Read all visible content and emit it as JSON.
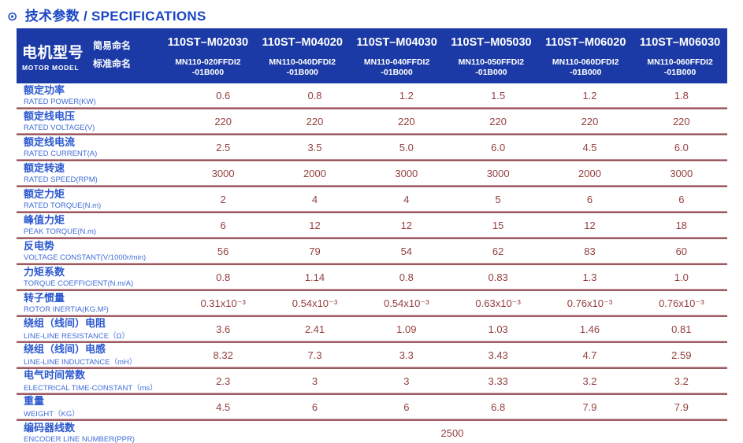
{
  "page_title": {
    "icon_glyph": "⊙",
    "text": "技术参数 / SPECIFICATIONS"
  },
  "colors": {
    "title_blue": "#1a46c4",
    "header_bg": "#1b3aa6",
    "label_blue": "#2b58cf",
    "label_blue_light": "#3f6bd8",
    "value_red": "#94403f",
    "divider_red": "#9d5c62"
  },
  "table": {
    "model_cell": {
      "title": "电机型号",
      "subtitle": "MOTOR MODEL"
    },
    "name_labels": {
      "simple": "简易命名",
      "standard": "标准命名"
    },
    "columns": [
      {
        "simple_name": "110ST–M02030",
        "standard_name": "MN110-020FFDI2\n-01B000"
      },
      {
        "simple_name": "110ST–M04020",
        "standard_name": "MN110-040DFDI2\n-01B000"
      },
      {
        "simple_name": "110ST–M04030",
        "standard_name": "MN110-040FFDI2\n-01B000"
      },
      {
        "simple_name": "110ST–M05030",
        "standard_name": "MN110-050FFDI2\n-01B000"
      },
      {
        "simple_name": "110ST–M06020",
        "standard_name": "MN110-060DFDI2\n-01B000"
      },
      {
        "simple_name": "110ST–M06030",
        "standard_name": "MN110-060FFDI2\n-01B000"
      }
    ],
    "rows": [
      {
        "label_cn": "额定功率",
        "label_en": "RATED POWER(KW)",
        "values": [
          "0.6",
          "0.8",
          "1.2",
          "1.5",
          "1.2",
          "1.8"
        ]
      },
      {
        "label_cn": "额定线电压",
        "label_en": "RATED VOLTAGE(V)",
        "values": [
          "220",
          "220",
          "220",
          "220",
          "220",
          "220"
        ]
      },
      {
        "label_cn": "额定线电流",
        "label_en": "RATED CURRENT(A)",
        "values": [
          "2.5",
          "3.5",
          "5.0",
          "6.0",
          "4.5",
          "6.0"
        ]
      },
      {
        "label_cn": "额定转速",
        "label_en": "RATED SPEED(RPM)",
        "values": [
          "3000",
          "2000",
          "3000",
          "3000",
          "2000",
          "3000"
        ]
      },
      {
        "label_cn": "额定力矩",
        "label_en": "RATED TORQUE(N.m)",
        "values": [
          "2",
          "4",
          "4",
          "5",
          "6",
          "6"
        ]
      },
      {
        "label_cn": "峰值力矩",
        "label_en": "PEAK TORQUE(N.m)",
        "values": [
          "6",
          "12",
          "12",
          "15",
          "12",
          "18"
        ]
      },
      {
        "label_cn": "反电势",
        "label_en": "VOLTAGE CONSTANT(V/1000r/min)",
        "values": [
          "56",
          "79",
          "54",
          "62",
          "83",
          "60"
        ]
      },
      {
        "label_cn": "力矩系数",
        "label_en": "TORQUE COEFFICIENT(N.m/A)",
        "values": [
          "0.8",
          "1.14",
          "0.8",
          "0.83",
          "1.3",
          "1.0"
        ]
      },
      {
        "label_cn": "转子惯量",
        "label_en": "ROTOR INERTIA(KG.M²)",
        "values": [
          "0.31x10⁻³",
          "0.54x10⁻³",
          "0.54x10⁻³",
          "0.63x10⁻³",
          "0.76x10⁻³",
          "0.76x10⁻³"
        ]
      },
      {
        "label_cn": "绕组（线间）电阻",
        "label_en": "LINE-LINE RESISTANCE（Ω）",
        "values": [
          "3.6",
          "2.41",
          "1.09",
          "1.03",
          "1.46",
          "0.81"
        ]
      },
      {
        "label_cn": "绕组（线间）电感",
        "label_en": "LINE-LINE INDUCTANCE（mH）",
        "values": [
          "8.32",
          "7.3",
          "3.3",
          "3.43",
          "4.7",
          "2.59"
        ]
      },
      {
        "label_cn": "电气时间常数",
        "label_en": "ELECTRICAL TIME-CONSTANT（ms）",
        "values": [
          "2.3",
          "3",
          "3",
          "3.33",
          "3.2",
          "3.2"
        ]
      },
      {
        "label_cn": "重量",
        "label_en": "WEIGHT（KG）",
        "values": [
          "4.5",
          "6",
          "6",
          "6.8",
          "7.9",
          "7.9"
        ]
      }
    ],
    "encoder_row": {
      "label_cn": "编码器线数",
      "label_en": "ENCODER LINE NUMBER(PPR)",
      "value": "2500"
    }
  }
}
